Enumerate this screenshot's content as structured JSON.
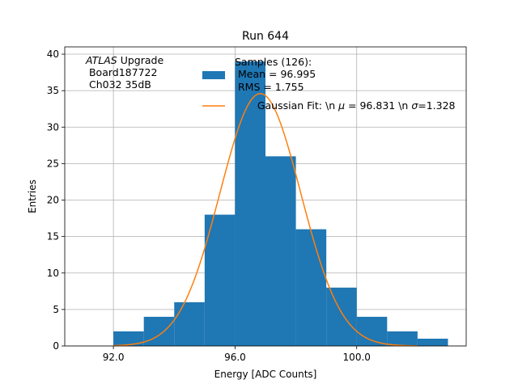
{
  "chart_data": {
    "type": "bar",
    "title": "Run 644",
    "xlabel": "Energy [ADC Counts]",
    "ylabel": "Entries",
    "xlim": [
      90.4,
      103.6
    ],
    "ylim": [
      0,
      41
    ],
    "grid": true,
    "x_ticks": [
      92.0,
      96.0,
      100.0
    ],
    "x_tick_labels": [
      "92.0",
      "96.0",
      "100.0"
    ],
    "y_ticks": [
      0,
      5,
      10,
      15,
      20,
      25,
      30,
      35,
      40
    ],
    "y_tick_labels": [
      "0",
      "5",
      "10",
      "15",
      "20",
      "25",
      "30",
      "35",
      "40"
    ],
    "bin_edges": [
      92.0,
      93.0,
      94.0,
      95.0,
      96.0,
      97.0,
      98.0,
      99.0,
      100.0,
      101.0,
      102.0,
      103.0
    ],
    "values": [
      2,
      4,
      6,
      18,
      39,
      26,
      16,
      8,
      4,
      2,
      1
    ],
    "fit": {
      "mu": 96.831,
      "sigma": 1.328,
      "amplitude": 34.6,
      "range": [
        92.0,
        102.0
      ]
    },
    "colors": {
      "bars": "#1f77b4",
      "fit": "#ff7f0e",
      "grid": "#b0b0b0"
    },
    "annotation": {
      "line1_italic": "ATLAS",
      "line1_rest": " Upgrade",
      "line2": " Board187722",
      "line3": " Ch032 35dB"
    },
    "legend": {
      "position": "top-right",
      "hist_line1": "Samples (126):",
      "hist_line2": " Mean = 96.995",
      "hist_line3": " RMS = 1.755",
      "fit_label_a": "Gaussian Fit: \\n ",
      "fit_mu_symbol": "μ",
      "fit_label_b": " = 96.831 \\n ",
      "fit_sigma_symbol": "σ",
      "fit_label_c": "=1.328"
    }
  }
}
